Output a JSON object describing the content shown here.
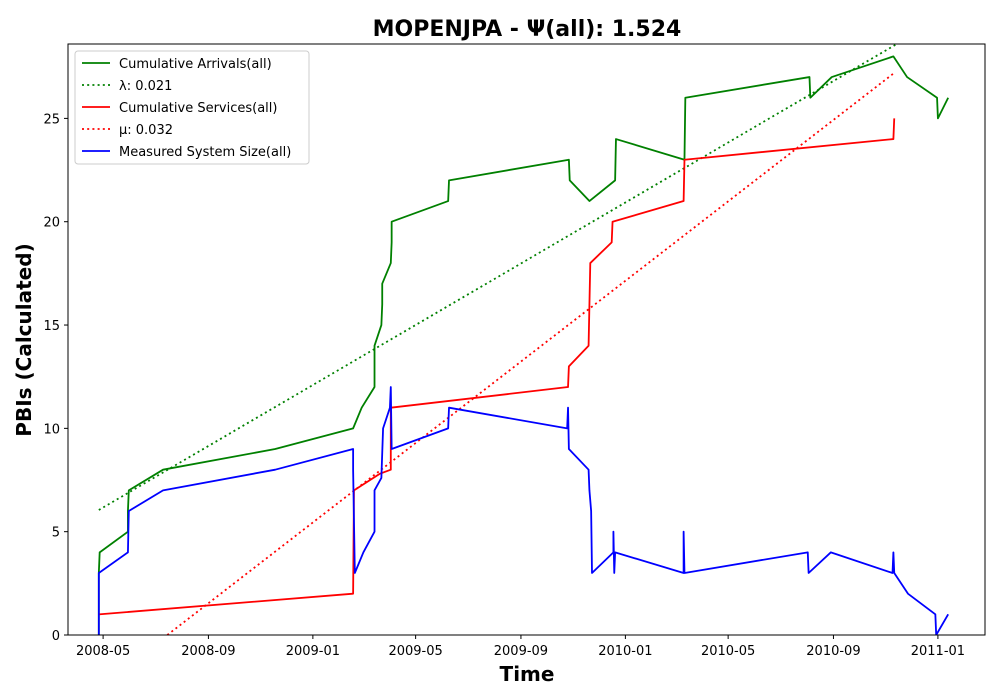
{
  "chart_data": {
    "type": "line",
    "title": "MOPENJPA -  Ψ(all): 1.524",
    "xlabel": "Time",
    "ylabel": "PBIs (Calculated)",
    "x_tick_labels": [
      "2008-05",
      "2008-09",
      "2009-01",
      "2009-05",
      "2009-09",
      "2010-01",
      "2010-05",
      "2010-09",
      "2011-01"
    ],
    "x_ticks": [
      "2008-05-01",
      "2008-09-01",
      "2009-01-01",
      "2009-05-01",
      "2009-09-01",
      "2010-01-01",
      "2010-05-01",
      "2010-09-01",
      "2011-01-01"
    ],
    "xlim": [
      "2008-03-21",
      "2011-02-25"
    ],
    "ylim": [
      0,
      28.6
    ],
    "y_ticks": [
      0,
      5,
      10,
      15,
      20,
      25
    ],
    "y_tick_labels": [
      "0",
      "5",
      "10",
      "15",
      "20",
      "25"
    ],
    "grid": false,
    "legend_placement": "top-left",
    "series": [
      {
        "name": "Cumulative Arrivals(all)",
        "color": "#008000",
        "style": "solid",
        "points": [
          [
            "2008-04-26",
            0
          ],
          [
            "2008-04-26",
            3
          ],
          [
            "2008-04-27",
            4
          ],
          [
            "2008-05-30",
            5
          ],
          [
            "2008-05-30",
            6
          ],
          [
            "2008-05-31",
            7
          ],
          [
            "2008-07-10",
            8
          ],
          [
            "2008-11-18",
            9
          ],
          [
            "2009-02-17",
            10
          ],
          [
            "2009-02-27",
            11
          ],
          [
            "2009-03-14",
            12
          ],
          [
            "2009-03-14",
            14
          ],
          [
            "2009-03-22",
            15
          ],
          [
            "2009-03-23",
            16
          ],
          [
            "2009-03-23",
            17
          ],
          [
            "2009-04-02",
            18
          ],
          [
            "2009-04-03",
            19
          ],
          [
            "2009-04-03",
            20
          ],
          [
            "2009-06-08",
            21
          ],
          [
            "2009-06-09",
            22
          ],
          [
            "2009-10-27",
            23
          ],
          [
            "2009-10-28",
            22
          ],
          [
            "2009-11-20",
            21
          ],
          [
            "2009-12-20",
            22
          ],
          [
            "2009-12-21",
            24
          ],
          [
            "2010-03-11",
            23
          ],
          [
            "2010-03-12",
            26
          ],
          [
            "2010-08-04",
            27
          ],
          [
            "2010-08-05",
            26
          ],
          [
            "2010-08-30",
            27
          ],
          [
            "2010-11-10",
            28
          ],
          [
            "2010-11-26",
            27
          ],
          [
            "2010-12-31",
            26
          ],
          [
            "2011-01-01",
            25
          ],
          [
            "2011-01-13",
            26
          ]
        ]
      },
      {
        "name": "λ: 0.021",
        "color": "#008000",
        "style": "dotted",
        "points": [
          [
            "2008-04-26",
            6.05
          ],
          [
            "2010-11-14",
            28.6
          ]
        ]
      },
      {
        "name": "Cumulative Services(all)",
        "color": "#ff0000",
        "style": "solid",
        "points": [
          [
            "2008-04-26",
            1
          ],
          [
            "2009-02-17",
            2
          ],
          [
            "2009-02-18",
            7
          ],
          [
            "2009-03-20",
            7.8
          ],
          [
            "2009-04-02",
            8
          ],
          [
            "2009-04-02",
            11
          ],
          [
            "2009-10-26",
            12
          ],
          [
            "2009-10-27",
            13
          ],
          [
            "2009-11-19",
            14
          ],
          [
            "2009-11-20",
            16
          ],
          [
            "2009-11-21",
            18
          ],
          [
            "2009-12-16",
            19
          ],
          [
            "2009-12-17",
            20
          ],
          [
            "2010-03-10",
            21
          ],
          [
            "2010-03-11",
            23
          ],
          [
            "2010-11-10",
            24
          ],
          [
            "2010-11-11",
            25
          ]
        ]
      },
      {
        "name": "μ: 0.032",
        "color": "#ff0000",
        "style": "dotted",
        "points": [
          [
            "2008-07-15",
            0
          ],
          [
            "2010-11-11",
            27.2
          ]
        ]
      },
      {
        "name": "Measured System Size(all)",
        "color": "#0000ff",
        "style": "solid",
        "points": [
          [
            "2008-04-26",
            0
          ],
          [
            "2008-04-26",
            3
          ],
          [
            "2008-05-30",
            4
          ],
          [
            "2008-05-31",
            6
          ],
          [
            "2008-07-10",
            7
          ],
          [
            "2008-11-18",
            8
          ],
          [
            "2009-02-17",
            9
          ],
          [
            "2009-02-17",
            8
          ],
          [
            "2009-02-19",
            3
          ],
          [
            "2009-03-01",
            4
          ],
          [
            "2009-03-14",
            5
          ],
          [
            "2009-03-14",
            7
          ],
          [
            "2009-03-22",
            7.6
          ],
          [
            "2009-03-24",
            10
          ],
          [
            "2009-04-01",
            11
          ],
          [
            "2009-04-02",
            12
          ],
          [
            "2009-04-03",
            9
          ],
          [
            "2009-06-08",
            10
          ],
          [
            "2009-06-09",
            11
          ],
          [
            "2009-10-25",
            10
          ],
          [
            "2009-10-26",
            11
          ],
          [
            "2009-10-27",
            9
          ],
          [
            "2009-11-19",
            8
          ],
          [
            "2009-11-20",
            7
          ],
          [
            "2009-11-22",
            6
          ],
          [
            "2009-11-23",
            3
          ],
          [
            "2009-12-18",
            4
          ],
          [
            "2009-12-18",
            5
          ],
          [
            "2009-12-19",
            3
          ],
          [
            "2009-12-20",
            4
          ],
          [
            "2010-03-10",
            3
          ],
          [
            "2010-03-10",
            5
          ],
          [
            "2010-03-11",
            3
          ],
          [
            "2010-08-02",
            4
          ],
          [
            "2010-08-03",
            3
          ],
          [
            "2010-08-29",
            4
          ],
          [
            "2010-11-09",
            3
          ],
          [
            "2010-11-10",
            4
          ],
          [
            "2010-11-11",
            3
          ],
          [
            "2010-11-27",
            2
          ],
          [
            "2010-12-29",
            1
          ],
          [
            "2010-12-30",
            0
          ],
          [
            "2011-01-13",
            1
          ]
        ]
      }
    ]
  }
}
